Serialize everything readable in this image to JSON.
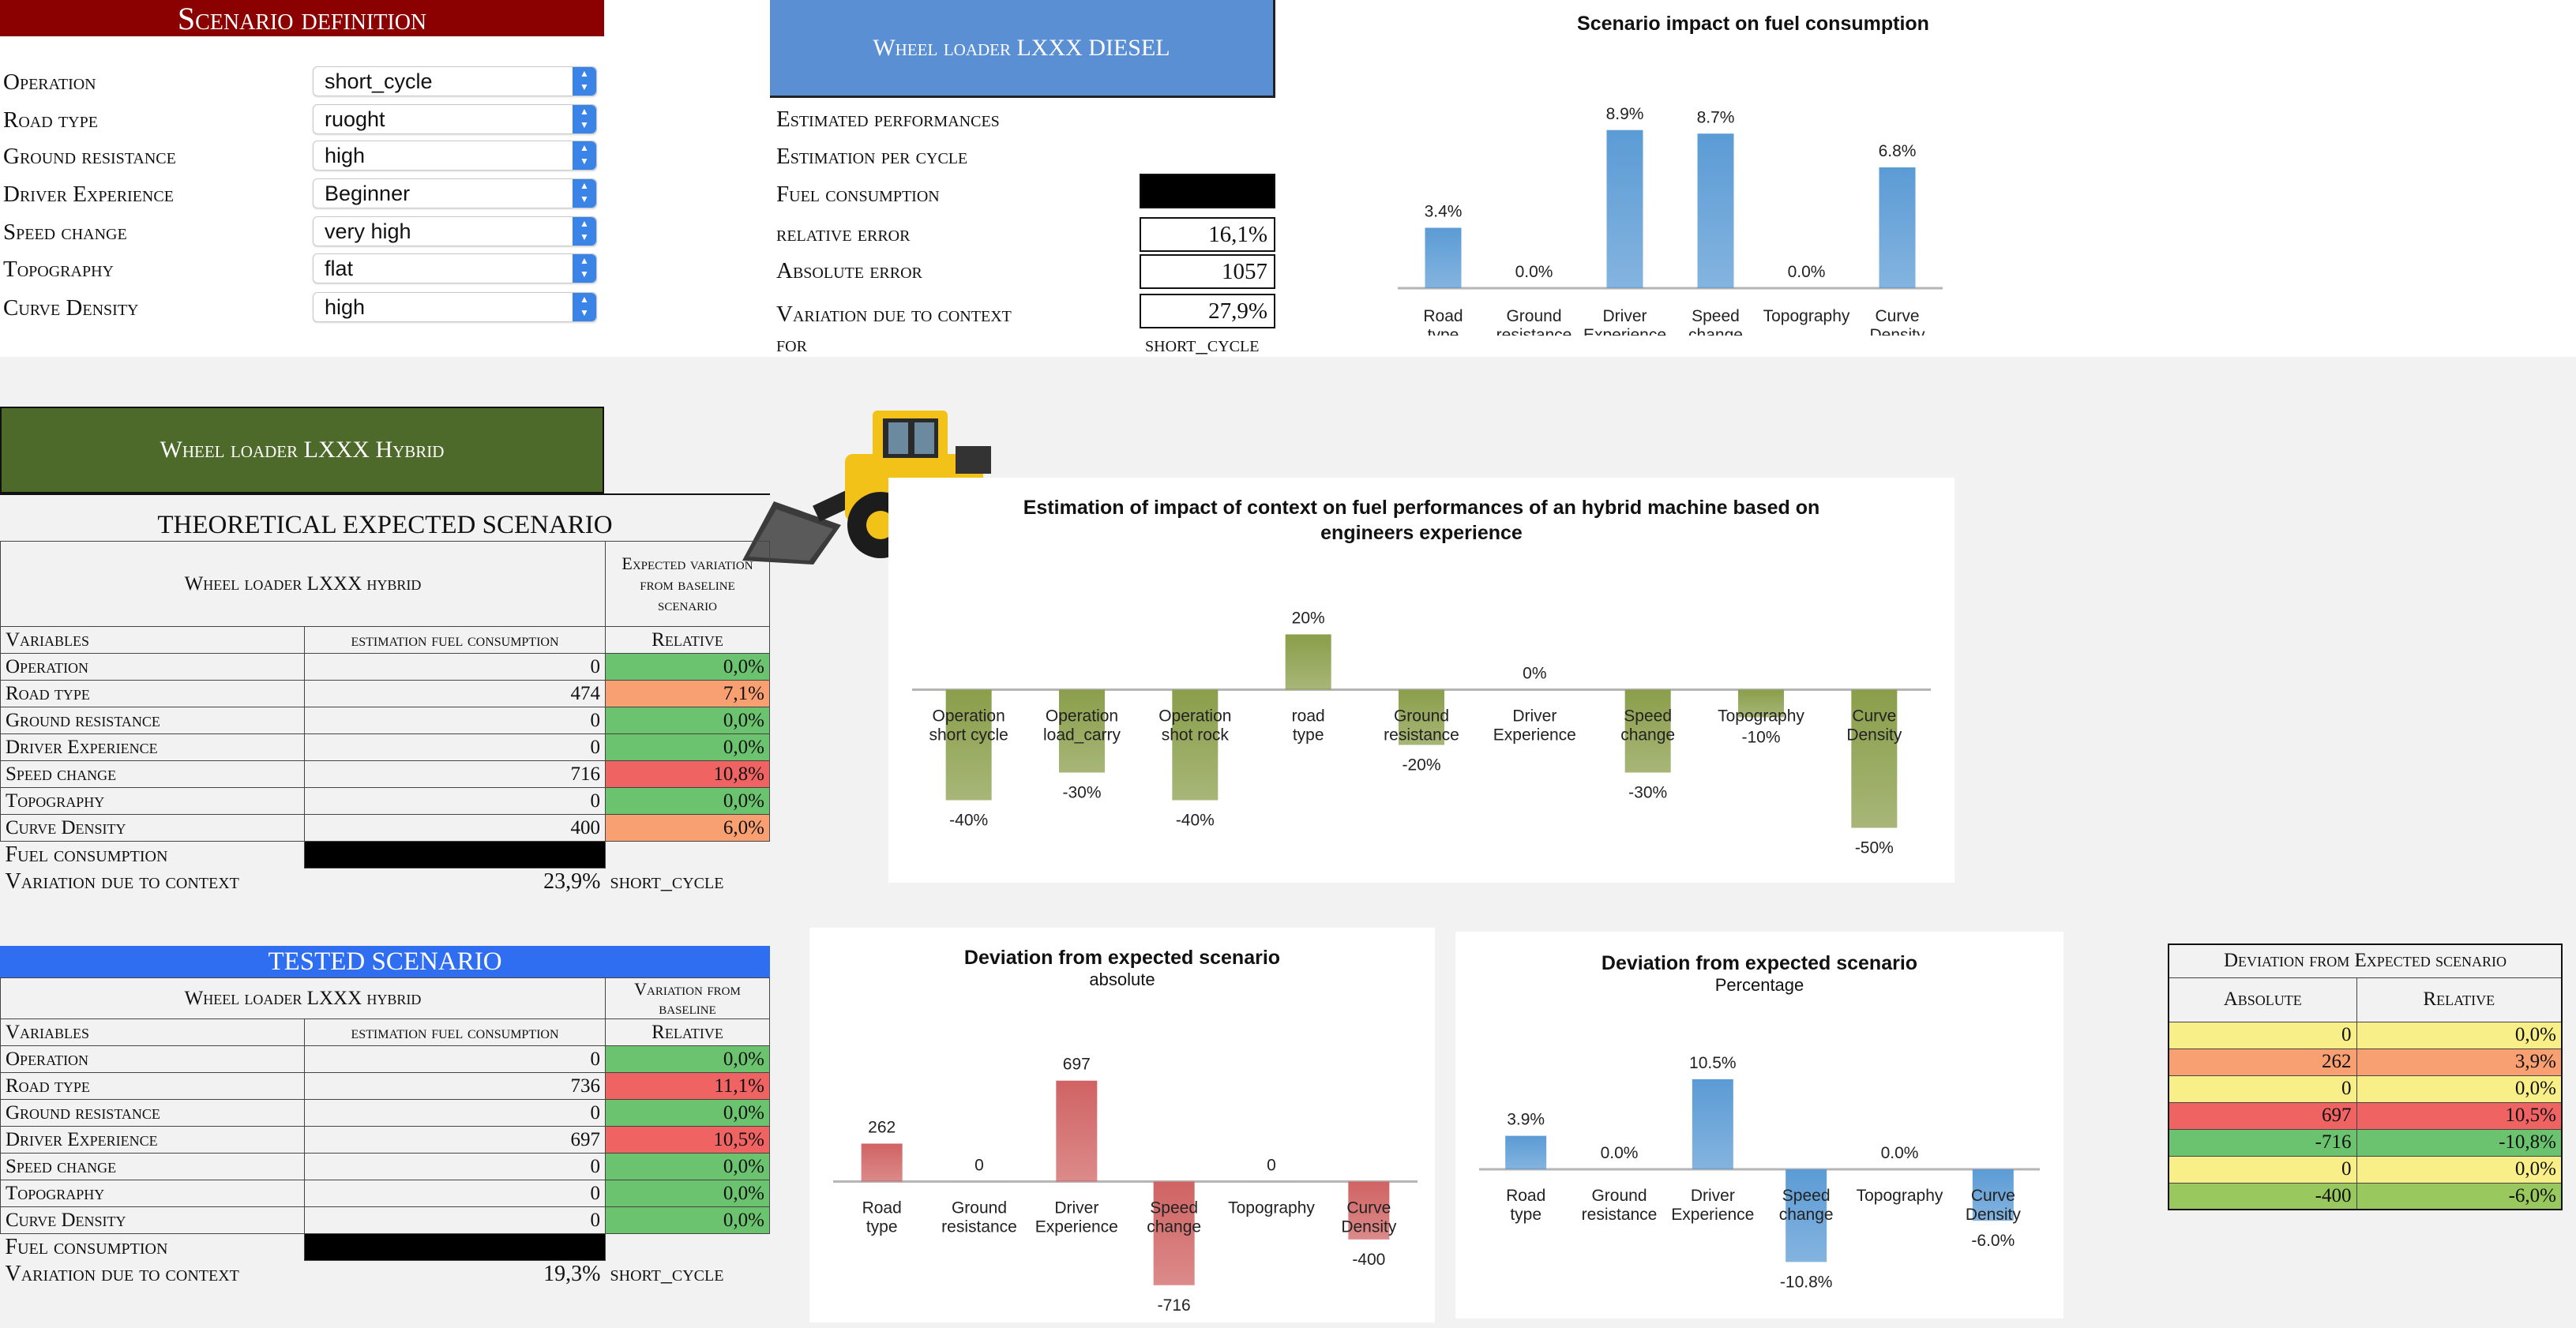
{
  "scenario_definition": {
    "title": "Scenario definition",
    "rows": [
      {
        "label": "Operation",
        "value": "short_cycle"
      },
      {
        "label": "Road type",
        "value": "ruoght"
      },
      {
        "label": "Ground resistance",
        "value": "high"
      },
      {
        "label": "Driver Experience",
        "value": "Beginner"
      },
      {
        "label": "Speed change",
        "value": "very high"
      },
      {
        "label": "Topography",
        "value": "flat"
      },
      {
        "label": "Curve Density",
        "value": "high"
      }
    ]
  },
  "diesel": {
    "title": "Wheel loader LXXX DIESEL",
    "estimated_performances": "Estimated performances",
    "estimation_per_cycle": "Estimation per cycle",
    "fuel_consumption_label": "Fuel consumption",
    "relative_error_label": "relative error",
    "relative_error": "16,1%",
    "absolute_error_label": "Absolute error",
    "absolute_error": "1057",
    "variation_label": "Variation due to context",
    "variation": "27,9%",
    "for_label": "for",
    "for_value": "short_cycle"
  },
  "hybrid": {
    "title": "Wheel loader LXXX Hybrid"
  },
  "theoretical": {
    "title": "THEORETICAL EXPECTED SCENARIO",
    "machine": "Wheel loader LXXX hybrid",
    "expected_header": "Expected variation from baseline scenario",
    "col_variables": "Variables",
    "col_estimation": "estimation fuel consumption",
    "col_relative": "Relative",
    "rows": [
      {
        "name": "Operation",
        "value": "0",
        "pct": "0,0%",
        "color": "green"
      },
      {
        "name": "Road type",
        "value": "474",
        "pct": "7,1%",
        "color": "orange"
      },
      {
        "name": "Ground resistance",
        "value": "0",
        "pct": "0,0%",
        "color": "green"
      },
      {
        "name": "Driver Experience",
        "value": "0",
        "pct": "0,0%",
        "color": "green"
      },
      {
        "name": "Speed change",
        "value": "716",
        "pct": "10,8%",
        "color": "red"
      },
      {
        "name": "Topography",
        "value": "0",
        "pct": "0,0%",
        "color": "green"
      },
      {
        "name": "Curve Density",
        "value": "400",
        "pct": "6,0%",
        "color": "orange"
      }
    ],
    "fuel_label": "Fuel consumption",
    "variation_label": "Variation due to context",
    "variation_value": "23,9%",
    "variation_for": "short_cycle"
  },
  "tested": {
    "title": "TESTED SCENARIO",
    "machine": "Wheel loader LXXX hybrid",
    "variation_header": "Variation from baseline",
    "col_variables": "Variables",
    "col_estimation": "estimation fuel consumption",
    "col_relative": "Relative",
    "rows": [
      {
        "name": "Operation",
        "value": "0",
        "pct": "0,0%",
        "color": "green"
      },
      {
        "name": "Road type",
        "value": "736",
        "pct": "11,1%",
        "color": "red"
      },
      {
        "name": "Ground resistance",
        "value": "0",
        "pct": "0,0%",
        "color": "green"
      },
      {
        "name": "Driver Experience",
        "value": "697",
        "pct": "10,5%",
        "color": "red"
      },
      {
        "name": "Speed change",
        "value": "0",
        "pct": "0,0%",
        "color": "green"
      },
      {
        "name": "Topography",
        "value": "0",
        "pct": "0,0%",
        "color": "green"
      },
      {
        "name": "Curve Density",
        "value": "0",
        "pct": "0,0%",
        "color": "green"
      }
    ],
    "fuel_label": "Fuel consumption",
    "variation_label": "Variation due to context",
    "variation_value": "19,3%",
    "variation_for": "short_cycle"
  },
  "deviation_table": {
    "title": "Deviation from Expected scenario",
    "col_absolute": "Absolute",
    "col_relative": "Relative",
    "rows": [
      {
        "abs": "0",
        "rel": "0,0%",
        "color": "yellow"
      },
      {
        "abs": "262",
        "rel": "3,9%",
        "color": "orange"
      },
      {
        "abs": "0",
        "rel": "0,0%",
        "color": "yellow"
      },
      {
        "abs": "697",
        "rel": "10,5%",
        "color": "red"
      },
      {
        "abs": "-716",
        "rel": "-10,8%",
        "color": "green"
      },
      {
        "abs": "0",
        "rel": "0,0%",
        "color": "yellow"
      },
      {
        "abs": "-400",
        "rel": "-6,0%",
        "color": "lime"
      }
    ]
  },
  "chart_data": [
    {
      "type": "bar",
      "title": "Scenario impact on fuel consumption",
      "categories": [
        "Road type",
        "Ground resistance",
        "Driver Experience",
        "Speed change",
        "Topography",
        "Curve Density"
      ],
      "values": [
        3.4,
        0.0,
        8.9,
        8.7,
        0.0,
        6.8
      ],
      "labels": [
        "3.4%",
        "0.0%",
        "8.9%",
        "8.7%",
        "0.0%",
        "6.8%"
      ],
      "color": "#5b9bd5",
      "ylim": [
        0,
        10
      ]
    },
    {
      "type": "bar",
      "title": "Estimation of impact of context on fuel performances of an hybrid machine based on engineers experience",
      "categories": [
        "Operation short cycle",
        "Operation load_carry",
        "Operation shot rock",
        "road type",
        "Ground resistance",
        "Driver Experience",
        "Speed change",
        "Topography",
        "Curve Density"
      ],
      "values": [
        -40,
        -30,
        -40,
        20,
        -20,
        0,
        -30,
        -10,
        -50
      ],
      "labels": [
        "-40%",
        "-30%",
        "-40%",
        "20%",
        "-20%",
        "0%",
        "-30%",
        "-10%",
        "-50%"
      ],
      "color": "#8a9e4a",
      "ylim": [
        -55,
        25
      ]
    },
    {
      "type": "bar",
      "title": "Deviation from expected scenario",
      "subtitle": "absolute",
      "categories": [
        "Road type",
        "Ground resistance",
        "Driver Experience",
        "Speed change",
        "Topography",
        "Curve Density"
      ],
      "values": [
        262,
        0,
        697,
        -716,
        0,
        -400
      ],
      "labels": [
        "262",
        "0",
        "697",
        "-716",
        "0",
        "-400"
      ],
      "color": "#d06363",
      "ylim": [
        -750,
        750
      ]
    },
    {
      "type": "bar",
      "title": "Deviation from expected scenario",
      "subtitle": "Percentage",
      "categories": [
        "Road type",
        "Ground resistance",
        "Driver Experience",
        "Speed change",
        "Topography",
        "Curve Density"
      ],
      "values": [
        3.9,
        0.0,
        10.5,
        -10.8,
        0.0,
        -6.0
      ],
      "labels": [
        "3.9%",
        "0.0%",
        "10.5%",
        "-10.8%",
        "0.0%",
        "-6.0%"
      ],
      "color": "#5b9bd5",
      "ylim": [
        -11.5,
        11.5
      ]
    }
  ]
}
